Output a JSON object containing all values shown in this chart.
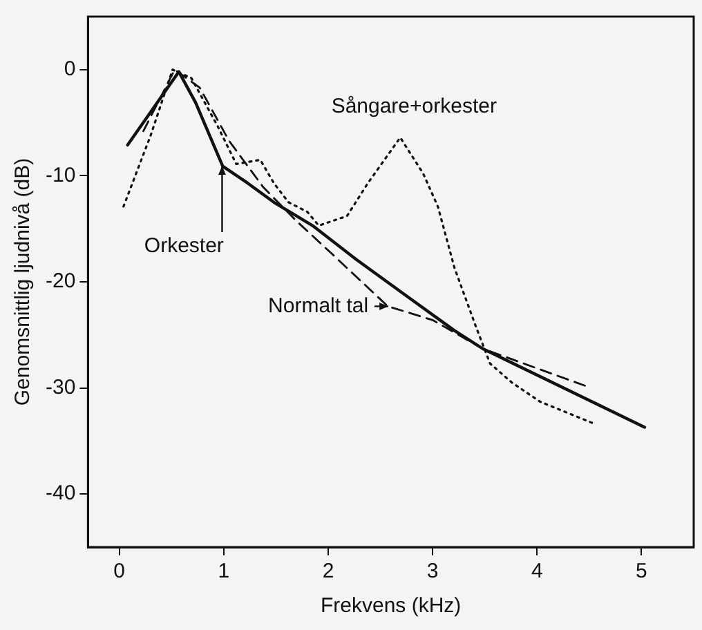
{
  "chart_data": {
    "type": "line",
    "xlabel": "Frekvens (kHz)",
    "ylabel": "Genomsnittlig ljudnivå (dB)",
    "xlim": [
      -0.3,
      5.5
    ],
    "xticks": [
      0,
      1,
      2,
      3,
      4,
      5
    ],
    "ylim": [
      -45,
      5
    ],
    "yticks": [
      0,
      -10,
      -20,
      -30,
      -40
    ],
    "grid": false,
    "legend": false,
    "marker": "none",
    "series": [
      {
        "color": "#111111",
        "line_style": "solid",
        "x": [
          0.08,
          0.57,
          0.73,
          0.99,
          1.23,
          1.48,
          1.85,
          2.27,
          2.76,
          3.21,
          3.48,
          5.03
        ],
        "values": [
          -7.1,
          -0.2,
          -3.1,
          -9.1,
          -10.7,
          -12.5,
          -14.7,
          -17.9,
          -21.4,
          -24.6,
          -26.3,
          -33.7
        ]
      },
      {
        "color": "#111111",
        "line_style": "dashed",
        "x": [
          0.23,
          0.53,
          0.77,
          1.05,
          1.38,
          1.7,
          2.04,
          2.57,
          3.0,
          3.48,
          4.49
        ],
        "values": [
          -5.8,
          0,
          -1.7,
          -6.7,
          -11.1,
          -14.3,
          -17.4,
          -22.3,
          -23.6,
          -26.3,
          -29.9
        ]
      },
      {
        "color": "#111111",
        "line_style": "dotted",
        "x": [
          0.04,
          0.3,
          0.51,
          0.69,
          0.94,
          1.12,
          1.35,
          1.48,
          1.62,
          1.8,
          1.91,
          2.18,
          2.38,
          2.69,
          2.91,
          3.05,
          3.21,
          3.41,
          3.55,
          3.76,
          4.03,
          4.53
        ],
        "values": [
          -12.9,
          -6.2,
          0,
          -0.8,
          -5.3,
          -8.9,
          -8.5,
          -10.7,
          -12.5,
          -13.4,
          -14.7,
          -13.8,
          -10.7,
          -6.4,
          -9.8,
          -12.9,
          -18.7,
          -24.1,
          -27.7,
          -29.5,
          -31.3,
          -33.3
        ]
      }
    ],
    "annotations": [
      {
        "text": "Sångare+orkester",
        "x": 2.69,
        "y": -6.4
      },
      {
        "text": "Orkester",
        "x": 0.99,
        "y": -9.1
      },
      {
        "text": "Normalt tal",
        "x": 2.57,
        "y": -22.3
      }
    ]
  }
}
